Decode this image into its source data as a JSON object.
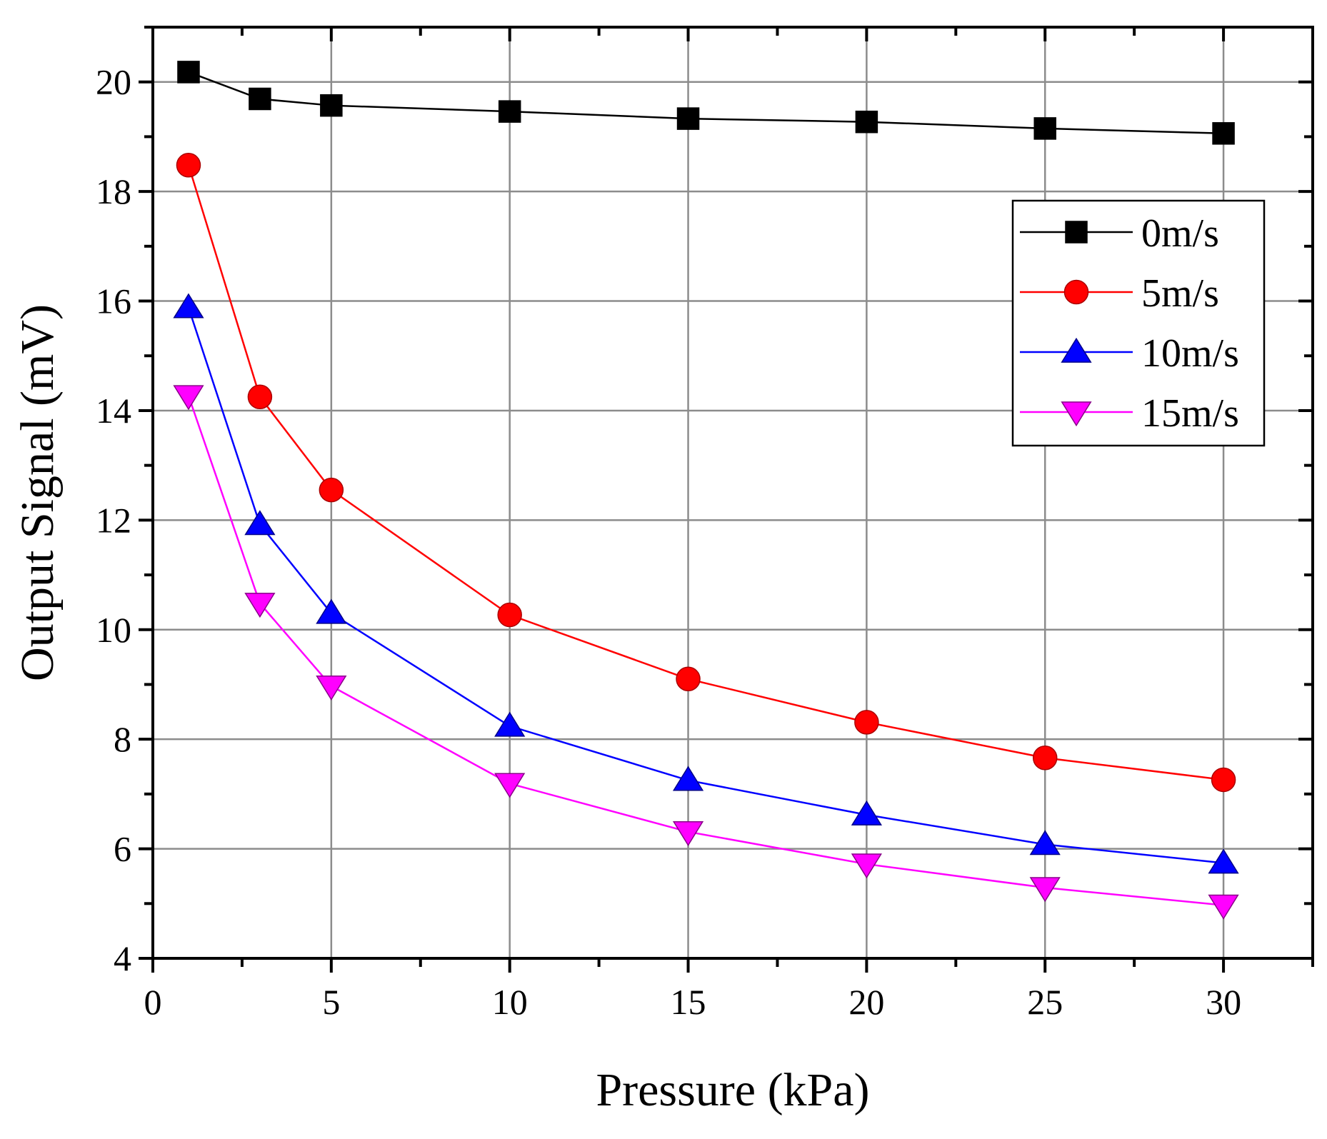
{
  "chart_data": {
    "type": "line",
    "title": "",
    "xlabel": "Pressure  (kPa)",
    "ylabel": "Output Signal  (mV)",
    "xlim": [
      0,
      32.5
    ],
    "ylim": [
      4,
      21
    ],
    "xticks": [
      0,
      5,
      10,
      15,
      20,
      25,
      30
    ],
    "yticks": [
      4,
      6,
      8,
      10,
      12,
      14,
      16,
      18,
      20
    ],
    "grid": true,
    "legend_position": "top-right",
    "x": [
      1,
      3,
      5,
      10,
      15,
      20,
      25,
      30
    ],
    "series": [
      {
        "name": "0m/s",
        "color": "#000000",
        "marker": "square",
        "values": [
          20.18,
          19.69,
          19.57,
          19.46,
          19.33,
          19.27,
          19.15,
          19.06
        ]
      },
      {
        "name": "5m/s",
        "color": "#ff0000",
        "marker": "circle",
        "values": [
          18.48,
          14.25,
          12.55,
          10.27,
          9.1,
          8.31,
          7.66,
          7.26
        ]
      },
      {
        "name": "10m/s",
        "color": "#0000ff",
        "marker": "triangle-up",
        "values": [
          15.88,
          11.92,
          10.3,
          8.24,
          7.25,
          6.62,
          6.08,
          5.74
        ]
      },
      {
        "name": "15m/s",
        "color": "#ff00ff",
        "marker": "triangle-down",
        "values": [
          14.27,
          10.48,
          8.97,
          7.19,
          6.31,
          5.72,
          5.29,
          4.97
        ]
      }
    ]
  }
}
